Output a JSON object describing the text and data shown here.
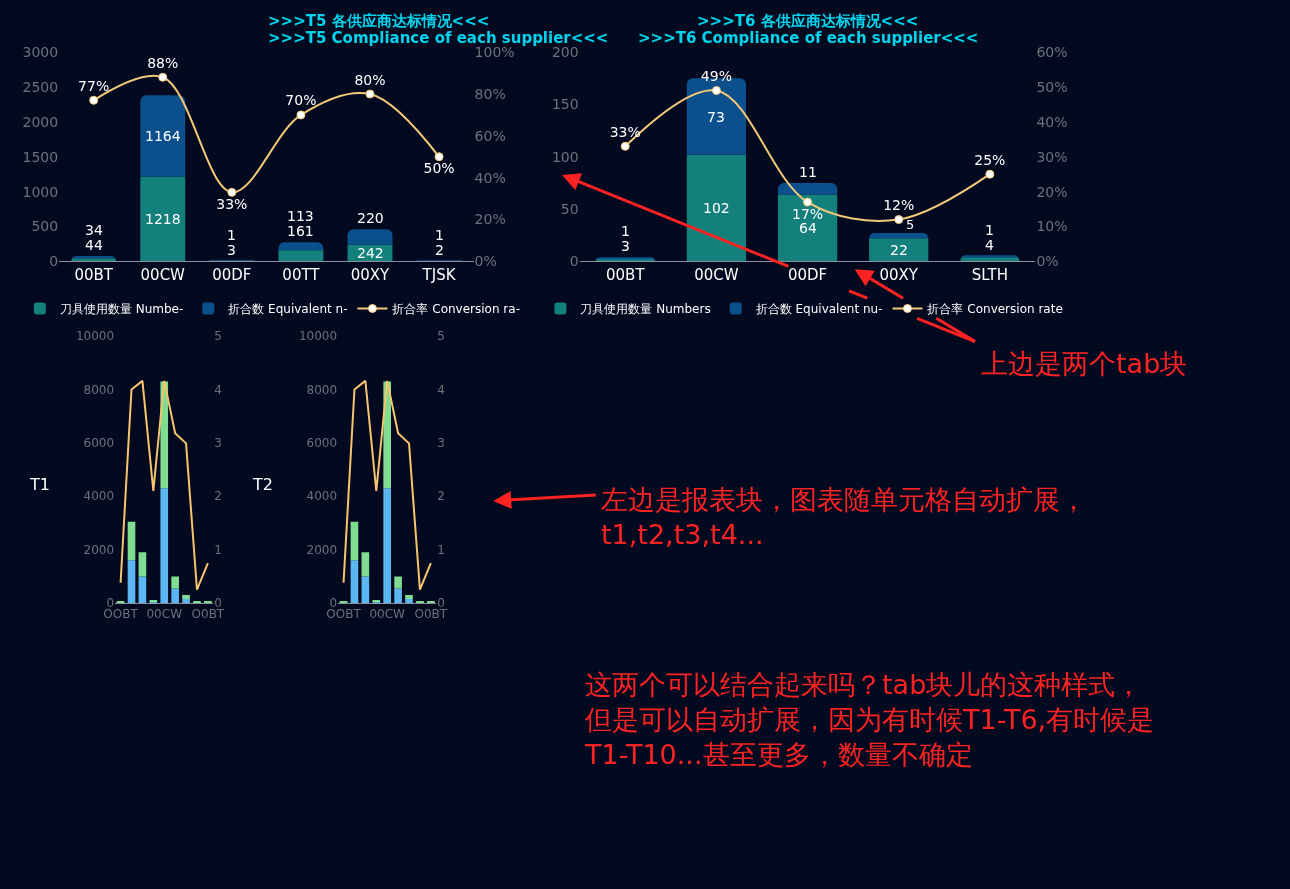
{
  "chart_data": [
    {
      "type": "bar",
      "stacked": true,
      "title": ">>>T5 各供应商达标情况<<<",
      "subtitle": ">>>T5 Compliance of each supplier<<<",
      "categories": [
        "00BT",
        "00CW",
        "00DF",
        "00TT",
        "00XY",
        "TJSK"
      ],
      "series": [
        {
          "name": "刀具使用数量 Numbe-",
          "color": "#13807c",
          "values": [
            44,
            1218,
            3,
            161,
            242,
            2
          ],
          "value_labels": [
            "44",
            "1218",
            "3",
            "161",
            "242",
            "2"
          ]
        },
        {
          "name": "折合数 Equivalent n-",
          "color": "#0b4f8c",
          "values": [
            34,
            1164,
            1,
            113,
            220,
            1
          ],
          "value_labels": [
            "34",
            "1164",
            "1",
            "113",
            "220",
            "1"
          ]
        },
        {
          "name": "折合率 Conversion ra-",
          "type": "line",
          "axis": "y2",
          "color": "#f2c879",
          "values": [
            77,
            88,
            33,
            70,
            80,
            50
          ],
          "value_labels": [
            "77%",
            "88%",
            "33%",
            "70%",
            "80%",
            "50%"
          ]
        }
      ],
      "ylim": [
        0,
        3000
      ],
      "yticks": [
        0,
        500,
        1000,
        1500,
        2000,
        2500,
        3000
      ],
      "y2lim": [
        0,
        100
      ],
      "y2ticks": [
        {
          "value": 0,
          "label": "0%"
        },
        {
          "value": 20,
          "label": "20%"
        },
        {
          "value": 40,
          "label": "40%"
        },
        {
          "value": 60,
          "label": "60%"
        },
        {
          "value": 80,
          "label": "80%"
        },
        {
          "value": 100,
          "label": "100%"
        }
      ],
      "legend": "bottom",
      "marker": "circle"
    },
    {
      "type": "bar",
      "stacked": true,
      "title": ">>>T6 各供应商达标情况<<<",
      "subtitle": ">>>T6 Compliance of each supplier<<<",
      "categories": [
        "00BT",
        "00CW",
        "00DF",
        "00XY",
        "SLTH"
      ],
      "series": [
        {
          "name": "刀具使用数量 Numbers",
          "color": "#13807c",
          "values": [
            3,
            102,
            64,
            22,
            4
          ],
          "value_labels": [
            "3",
            "102",
            "64",
            "22",
            "4"
          ]
        },
        {
          "name": "折合数 Equivalent nu-",
          "color": "#0b4f8c",
          "values": [
            1,
            73,
            11,
            5,
            1
          ],
          "value_labels": [
            "1",
            "73",
            "11",
            "5",
            "1"
          ]
        },
        {
          "name": "折合率 Conversion rate",
          "type": "line",
          "axis": "y2",
          "color": "#f2c879",
          "values": [
            33,
            49,
            17,
            12,
            25
          ],
          "value_labels": [
            "33%",
            "49%",
            "17%",
            "12%",
            "25%"
          ]
        }
      ],
      "ylim": [
        0,
        200
      ],
      "yticks": [
        0,
        50,
        100,
        150,
        200
      ],
      "y2lim": [
        0,
        60
      ],
      "y2ticks": [
        {
          "value": 0,
          "label": "0%"
        },
        {
          "value": 10,
          "label": "10%"
        },
        {
          "value": 20,
          "label": "20%"
        },
        {
          "value": 30,
          "label": "30%"
        },
        {
          "value": 40,
          "label": "40%"
        },
        {
          "value": 50,
          "label": "50%"
        },
        {
          "value": 60,
          "label": "60%"
        }
      ],
      "legend": "bottom",
      "marker": "circle"
    },
    {
      "type": "bar",
      "stacked": true,
      "title": "T1",
      "categories": [
        "OOBT",
        null,
        null,
        null,
        "00CW",
        null,
        null,
        null,
        "O0BT"
      ],
      "series": [
        {
          "color": "#5cb6f2",
          "values": [
            20,
            1600,
            1000,
            50,
            4300,
            550,
            150,
            20,
            20
          ]
        },
        {
          "color": "#80dc90",
          "values": [
            40,
            1450,
            900,
            50,
            4000,
            450,
            150,
            40,
            40
          ]
        },
        {
          "type": "line",
          "axis": "y2",
          "color": "#f7c56f",
          "values": [
            0.38,
            4.0,
            4.16,
            2.1,
            4.16,
            3.18,
            2.99,
            0.25,
            0.75
          ]
        }
      ],
      "ylim": [
        0,
        10000
      ],
      "yticks": [
        0,
        2000,
        4000,
        6000,
        8000,
        10000
      ],
      "y2lim": [
        0,
        5
      ],
      "y2ticks": [
        0,
        1,
        2,
        3,
        4,
        5
      ]
    },
    {
      "type": "bar",
      "stacked": true,
      "title": "T2",
      "categories": [
        "OOBT",
        null,
        null,
        null,
        "00CW",
        null,
        null,
        null,
        "O0BT"
      ],
      "series": [
        {
          "color": "#5cb6f2",
          "values": [
            20,
            1600,
            1000,
            50,
            4300,
            550,
            150,
            20,
            20
          ]
        },
        {
          "color": "#80dc90",
          "values": [
            40,
            1450,
            900,
            50,
            4000,
            450,
            150,
            40,
            40
          ]
        },
        {
          "type": "line",
          "axis": "y2",
          "color": "#f7c56f",
          "values": [
            0.38,
            4.0,
            4.16,
            2.1,
            4.16,
            3.18,
            2.99,
            0.25,
            0.75
          ]
        }
      ],
      "ylim": [
        0,
        10000
      ],
      "yticks": [
        0,
        2000,
        4000,
        6000,
        8000,
        10000
      ],
      "y2lim": [
        0,
        5
      ],
      "y2ticks": [
        0,
        1,
        2,
        3,
        4,
        5
      ]
    },
    {
      "type": "other",
      "annotations": [
        "上边是两个tab块",
        "左边是报表块，图表随单元格自动扩展，t1,t2,t3,t4...",
        "这两个可以结合起来吗？tab块儿的这种样式，但是可以自动扩展，因为有时候T1-T6,有时候是T1-T10...甚至更多，数量不确定"
      ]
    }
  ]
}
